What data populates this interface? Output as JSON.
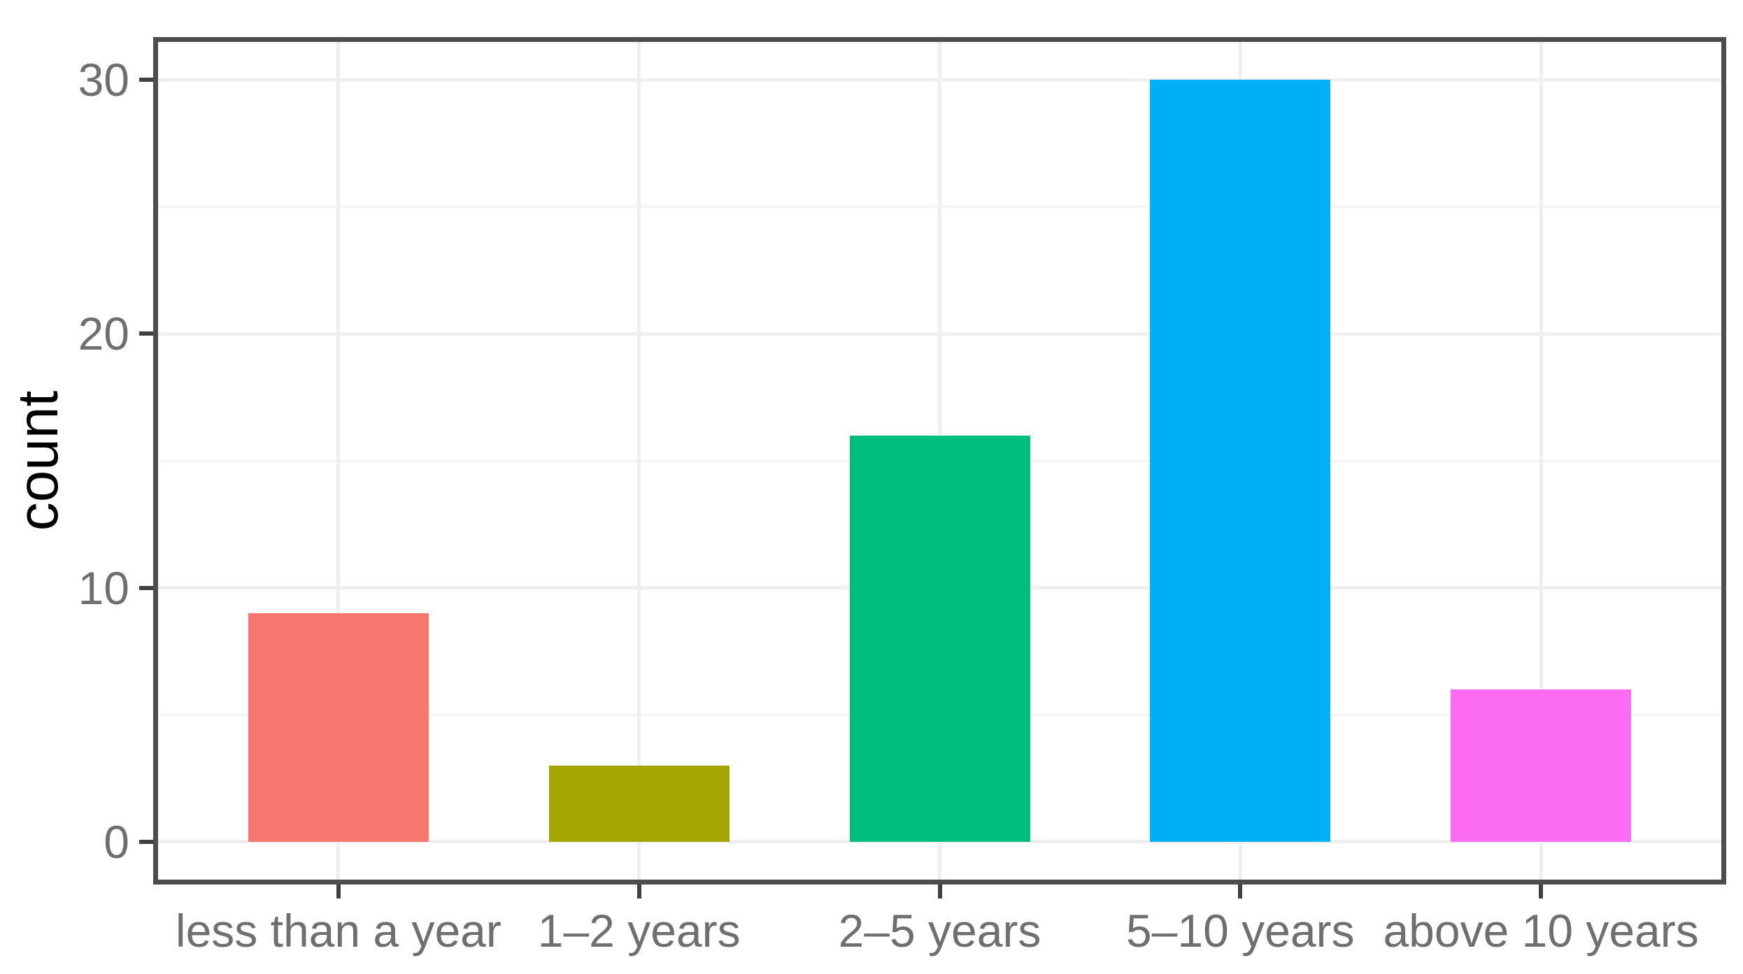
{
  "chart_data": {
    "type": "bar",
    "title": "",
    "categories": [
      "less than a year",
      "1–2 years",
      "2–5 years",
      "5–10 years",
      "above 10 years"
    ],
    "values": [
      9,
      3,
      16,
      30,
      6
    ],
    "bar_colors": [
      "#F8766D",
      "#A3A500",
      "#00BF7D",
      "#00B0F6",
      "#FB6CF3"
    ],
    "xlabel": "",
    "ylabel": "count",
    "ylim": [
      0,
      30
    ],
    "y_major_ticks": [
      0,
      10,
      20,
      30
    ],
    "y_minor_ticks": [
      5,
      15,
      25
    ],
    "grid": "major-and-minor-horizontal, major-vertical-at-category-centers",
    "legend": "none",
    "theme": {
      "panel_border_color": "#4D4D4D",
      "major_grid_color": "#EFEFEF",
      "minor_grid_color": "#F3F3F3",
      "tick_color": "#404040",
      "tick_label_color": "#6F6F6F",
      "axis_title_color": "#000000",
      "background": "#FFFFFF"
    }
  }
}
